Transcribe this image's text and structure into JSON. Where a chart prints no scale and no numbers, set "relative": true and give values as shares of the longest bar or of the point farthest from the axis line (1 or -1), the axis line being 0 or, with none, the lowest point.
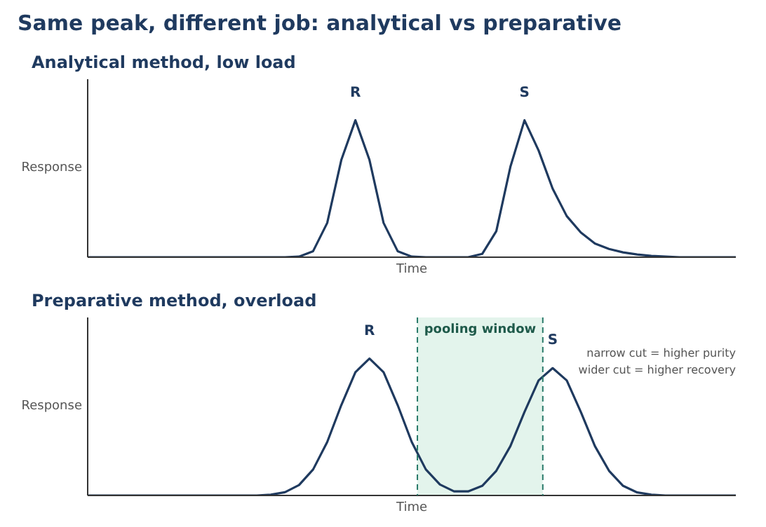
{
  "chart_data": [
    {
      "type": "line",
      "title": "Same peak, different job: analytical vs preparative",
      "subtitle": "Analytical method, low load",
      "xlabel": "Time",
      "ylabel": "Response",
      "relative": true,
      "categories": [
        null,
        null,
        null,
        null,
        null,
        null,
        null,
        null,
        null,
        null,
        null,
        null,
        null,
        null,
        null,
        null,
        null,
        null,
        null,
        null,
        null,
        null,
        null,
        null,
        null,
        null,
        null,
        null,
        null,
        null,
        null,
        null,
        null,
        null,
        null,
        null,
        null,
        null,
        null,
        null,
        null,
        null,
        null,
        null,
        null,
        null,
        null
      ],
      "series": [
        {
          "color": "#1f3a5f",
          "values": [
            0,
            0,
            0,
            0,
            0,
            0,
            0,
            0,
            0,
            0,
            0,
            0,
            0,
            0,
            0,
            0.004,
            0.044,
            0.25,
            0.71,
            1,
            0.71,
            0.25,
            0.044,
            0.004,
            0,
            0,
            0,
            0,
            0.024,
            0.19,
            0.66,
            1,
            0.78,
            0.5,
            0.3,
            0.18,
            0.1,
            0.06,
            0.035,
            0.02,
            0.01,
            0.005,
            0,
            0,
            0,
            0,
            0
          ]
        }
      ],
      "annotations": [
        "R",
        "S"
      ]
    },
    {
      "type": "line",
      "title": "Preparative method, overload",
      "xlabel": "Time",
      "ylabel": "Response",
      "relative": true,
      "categories": [
        null,
        null,
        null,
        null,
        null,
        null,
        null,
        null,
        null,
        null,
        null,
        null,
        null,
        null,
        null,
        null,
        null,
        null,
        null,
        null,
        null,
        null,
        null,
        null,
        null,
        null,
        null,
        null,
        null,
        null,
        null,
        null,
        null,
        null,
        null,
        null,
        null,
        null,
        null,
        null,
        null,
        null,
        null,
        null,
        null,
        null,
        null
      ],
      "series": [
        {
          "color": "#1f3a5f",
          "values": [
            0,
            0,
            0,
            0,
            0,
            0,
            0,
            0,
            0,
            0,
            0,
            0,
            0,
            0.006,
            0.024,
            0.076,
            0.19,
            0.39,
            0.66,
            0.9,
            1,
            0.9,
            0.66,
            0.39,
            0.19,
            0.08,
            0.03,
            0.03,
            0.07,
            0.18,
            0.36,
            0.61,
            0.84,
            0.93,
            0.84,
            0.61,
            0.36,
            0.18,
            0.07,
            0.022,
            0.006,
            0,
            0,
            0,
            0,
            0,
            0
          ]
        }
      ],
      "annotations": [
        "R",
        "S",
        "pooling window",
        "narrow cut = higher purity",
        "wider cut = higher recovery"
      ]
    }
  ]
}
